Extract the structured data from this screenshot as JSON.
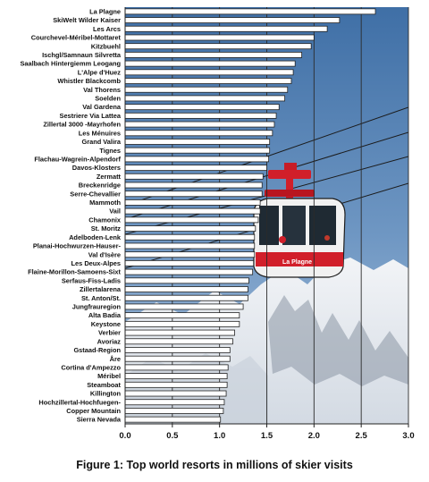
{
  "chart_data": {
    "type": "bar",
    "orientation": "horizontal",
    "title": "Figure 1: Top world resorts in millions of skier visits",
    "xlim": [
      0,
      3.0
    ],
    "x_ticks": [
      "0.0",
      "0.5",
      "1.0",
      "1.5",
      "2.0",
      "2.5",
      "3.0"
    ],
    "grid": "vertical",
    "categories": [
      "La Plagne",
      "SkiWelt Wilder Kaiser",
      "Les Arcs",
      "Courchevel-Méribel-Mottaret",
      "Kitzbuehl",
      "Ischgl/Samnaun Silvretta",
      "Saalbach Hintergiemm Leogang",
      "L'Alpe d'Huez",
      "Whistler Blackcomb",
      "Val Thorens",
      "Soelden",
      "Val Gardena",
      "Sestriere Via Lattea",
      "Zillertal 3000 -Mayrhofen",
      "Les Ménuires",
      "Grand Valira",
      "Tignes",
      "Flachau-Wagrein-Alpendorf",
      "Davos-Klosters",
      "Zermatt",
      "Breckenridge",
      "Serre-Chevallier",
      "Mammoth",
      "Vail",
      "Chamonix",
      "St. Moritz",
      "Adelboden-Lenk",
      "Planai-Hochwurzen-Hauser-",
      "Val d'Isère",
      "Les Deux-Alpes",
      "Flaine-Morillon-Samoens-Sixt",
      "Serfaus-Fiss-Ladis",
      "Zillertalarena",
      "St. Anton/St.",
      "Jungfrauregion",
      "Alta Badia",
      "Keystone",
      "Verbier",
      "Avoriaz",
      "Gstaad-Region",
      "Åre",
      "Cortina d'Ampezzo",
      "Méribel",
      "Steamboat",
      "Killington",
      "Hochzillertal-Hochfuegen-",
      "Copper Mountain",
      "Sierra Nevada"
    ],
    "values": [
      2.65,
      2.27,
      2.14,
      2.0,
      1.97,
      1.87,
      1.8,
      1.78,
      1.76,
      1.72,
      1.69,
      1.63,
      1.6,
      1.58,
      1.56,
      1.53,
      1.53,
      1.52,
      1.5,
      1.46,
      1.45,
      1.45,
      1.43,
      1.43,
      1.41,
      1.38,
      1.37,
      1.37,
      1.37,
      1.36,
      1.35,
      1.31,
      1.3,
      1.3,
      1.25,
      1.21,
      1.21,
      1.16,
      1.14,
      1.11,
      1.11,
      1.09,
      1.08,
      1.08,
      1.07,
      1.05,
      1.04,
      1.01
    ]
  },
  "colors": {
    "bar_fill": "#ffffff",
    "bar_stroke": "#222222",
    "sky": "#5d88b8",
    "snow": "#e6eaef",
    "gondola_red": "#d11f2a",
    "gridline": "#2b2b2b",
    "label_text": "#111111"
  },
  "photo": {
    "description_icon": "cable-car-gondola-photo",
    "gondola_sign": "La Plagne"
  }
}
